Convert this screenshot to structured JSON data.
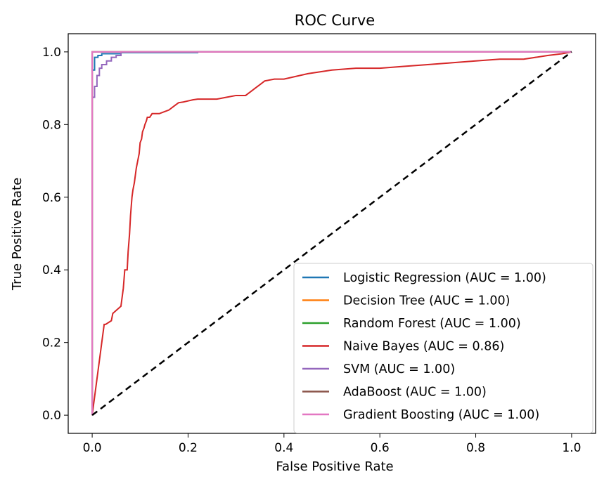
{
  "chart_data": {
    "type": "line",
    "title": "ROC Curve",
    "xlabel": "False Positive Rate",
    "ylabel": "True Positive Rate",
    "xlim": [
      -0.05,
      1.05
    ],
    "ylim": [
      -0.05,
      1.05
    ],
    "xticks": [
      "0.0",
      "0.2",
      "0.4",
      "0.6",
      "0.8",
      "1.0"
    ],
    "yticks": [
      "0.0",
      "0.2",
      "0.4",
      "0.6",
      "0.8",
      "1.0"
    ],
    "legend_position": "lower-right",
    "grid": false,
    "series": [
      {
        "name": "Logistic Regression (AUC = 1.00)",
        "color": "#1f77b4",
        "x": [
          0,
          0,
          0.005,
          0.005,
          0.012,
          0.012,
          0.02,
          0.02,
          0.06,
          0.06,
          0.22,
          0.22,
          1.0
        ],
        "y": [
          0,
          0.95,
          0.95,
          0.985,
          0.985,
          0.99,
          0.99,
          0.995,
          0.995,
          0.998,
          0.998,
          1.0,
          1.0
        ]
      },
      {
        "name": "Decision Tree (AUC = 1.00)",
        "color": "#ff7f0e",
        "x": [
          0,
          0,
          1.0
        ],
        "y": [
          0,
          1.0,
          1.0
        ]
      },
      {
        "name": "Random Forest (AUC = 1.00)",
        "color": "#2ca02c",
        "x": [
          0,
          0,
          1.0
        ],
        "y": [
          0,
          1.0,
          1.0
        ]
      },
      {
        "name": "Naive Bayes (AUC = 0.86)",
        "color": "#d62728",
        "x": [
          0,
          0.005,
          0.01,
          0.015,
          0.02,
          0.025,
          0.028,
          0.04,
          0.043,
          0.06,
          0.062,
          0.065,
          0.068,
          0.07,
          0.073,
          0.075,
          0.078,
          0.08,
          0.083,
          0.085,
          0.088,
          0.09,
          0.092,
          0.095,
          0.098,
          0.1,
          0.103,
          0.105,
          0.108,
          0.11,
          0.113,
          0.115,
          0.12,
          0.125,
          0.13,
          0.14,
          0.15,
          0.16,
          0.17,
          0.18,
          0.19,
          0.2,
          0.21,
          0.22,
          0.23,
          0.24,
          0.26,
          0.28,
          0.3,
          0.32,
          0.34,
          0.35,
          0.36,
          0.38,
          0.4,
          0.45,
          0.5,
          0.55,
          0.6,
          0.65,
          0.7,
          0.75,
          0.8,
          0.85,
          0.9,
          0.95,
          0.98,
          1.0
        ],
        "y": [
          0,
          0.05,
          0.1,
          0.15,
          0.2,
          0.25,
          0.25,
          0.26,
          0.28,
          0.3,
          0.32,
          0.35,
          0.4,
          0.4,
          0.4,
          0.45,
          0.5,
          0.55,
          0.6,
          0.62,
          0.64,
          0.66,
          0.68,
          0.7,
          0.72,
          0.75,
          0.76,
          0.78,
          0.79,
          0.8,
          0.81,
          0.82,
          0.82,
          0.83,
          0.83,
          0.83,
          0.835,
          0.84,
          0.85,
          0.86,
          0.862,
          0.865,
          0.868,
          0.87,
          0.87,
          0.87,
          0.87,
          0.875,
          0.88,
          0.88,
          0.9,
          0.91,
          0.92,
          0.925,
          0.925,
          0.94,
          0.95,
          0.955,
          0.955,
          0.96,
          0.965,
          0.97,
          0.975,
          0.98,
          0.98,
          0.99,
          0.995,
          1.0
        ]
      },
      {
        "name": "SVM (AUC = 1.00)",
        "color": "#9467bd",
        "x": [
          0,
          0,
          0.005,
          0.005,
          0.01,
          0.01,
          0.015,
          0.015,
          0.02,
          0.02,
          0.03,
          0.03,
          0.04,
          0.04,
          0.05,
          0.05,
          0.06,
          0.06,
          1.0
        ],
        "y": [
          0,
          0.875,
          0.875,
          0.905,
          0.905,
          0.935,
          0.935,
          0.955,
          0.955,
          0.965,
          0.965,
          0.975,
          0.975,
          0.985,
          0.985,
          0.99,
          0.99,
          1.0,
          1.0
        ]
      },
      {
        "name": "AdaBoost (AUC = 1.00)",
        "color": "#8c564b",
        "x": [
          0,
          0,
          1.0
        ],
        "y": [
          0,
          1.0,
          1.0
        ]
      },
      {
        "name": "Gradient Boosting (AUC = 1.00)",
        "color": "#e377c2",
        "x": [
          0,
          0,
          1.0
        ],
        "y": [
          0,
          1.0,
          1.0
        ]
      }
    ],
    "reference_line": {
      "x": [
        0,
        1
      ],
      "y": [
        0,
        1
      ],
      "color": "#000000",
      "style": "dashed"
    }
  }
}
